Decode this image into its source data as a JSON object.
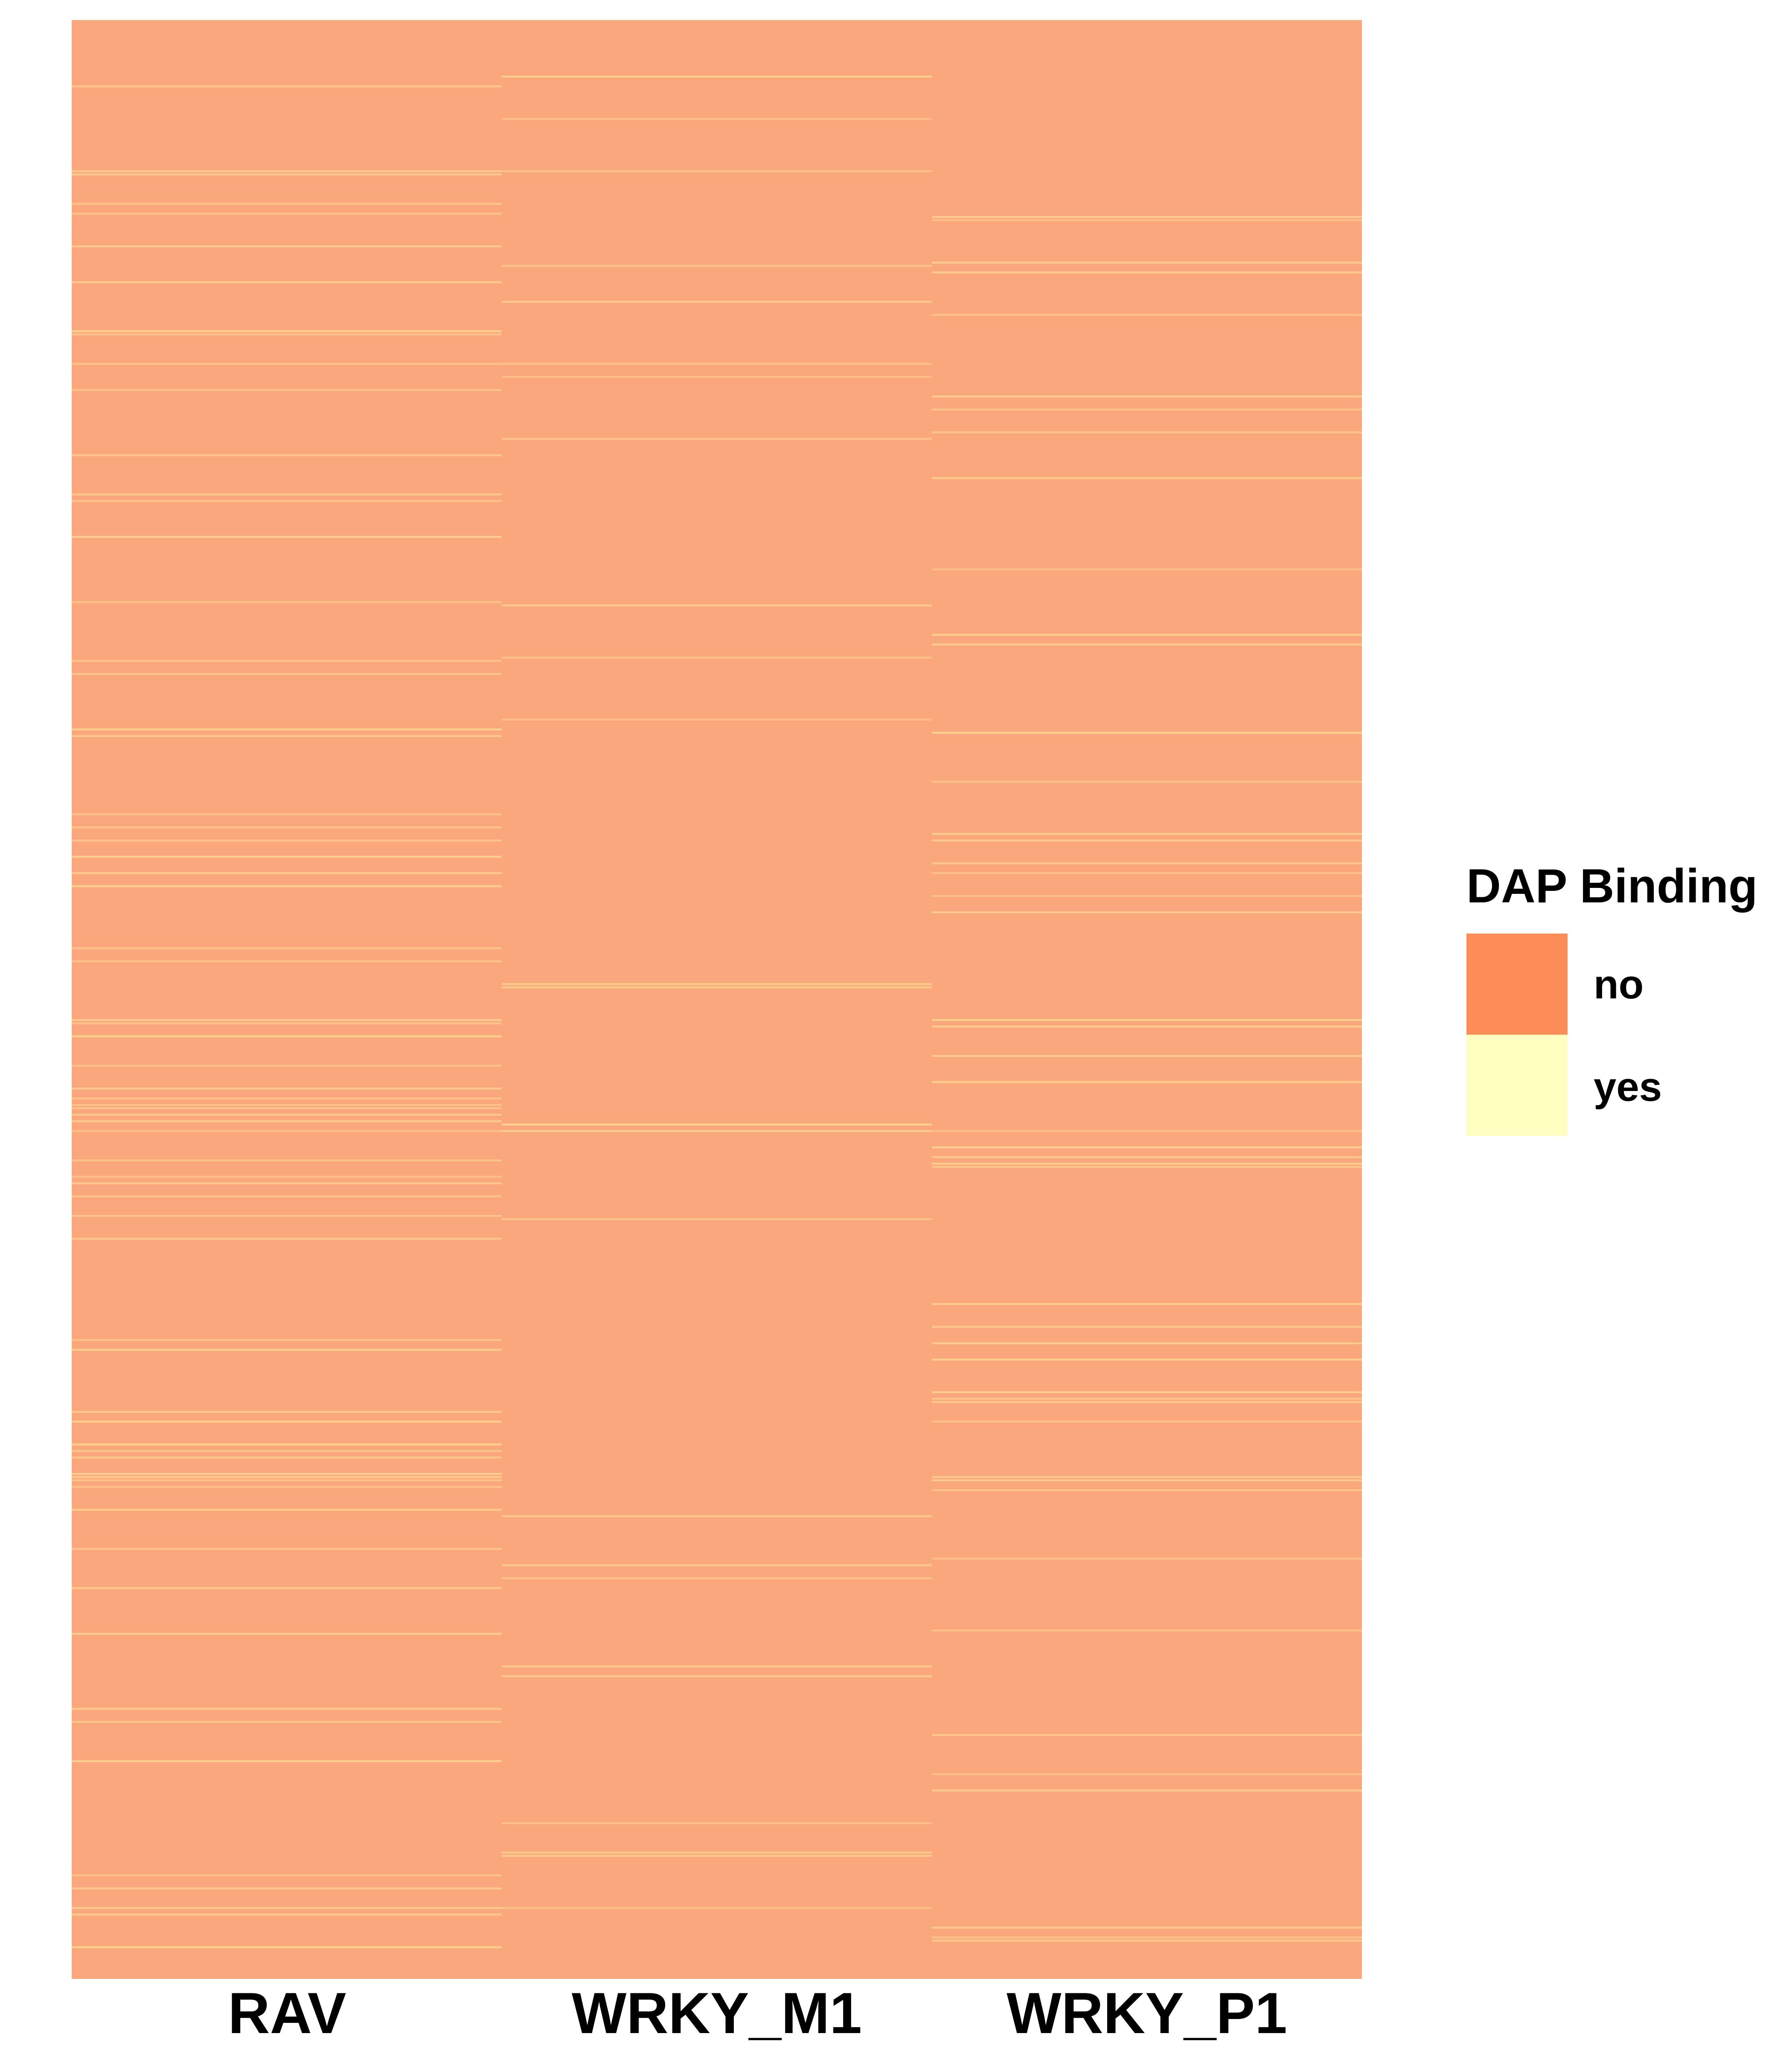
{
  "chart_data": {
    "type": "heatmap",
    "title": "",
    "xlabel": "",
    "ylabel": "",
    "columns": [
      "RAV",
      "WRKY_M1",
      "WRKY_P1"
    ],
    "row_count": 600,
    "value_levels": [
      "no",
      "yes"
    ],
    "yes_fraction": {
      "RAV": 0.12,
      "WRKY_M1": 0.03,
      "WRKY_P1": 0.08
    },
    "legend": {
      "title": "DAP Binding",
      "position": "right",
      "entries": [
        {
          "label": "no",
          "color": "#FC8D59"
        },
        {
          "label": "yes",
          "color": "#FFFFBF"
        }
      ]
    },
    "colors": {
      "no": "#FBA77E",
      "yes": "#FFD28F"
    },
    "grid": false
  }
}
